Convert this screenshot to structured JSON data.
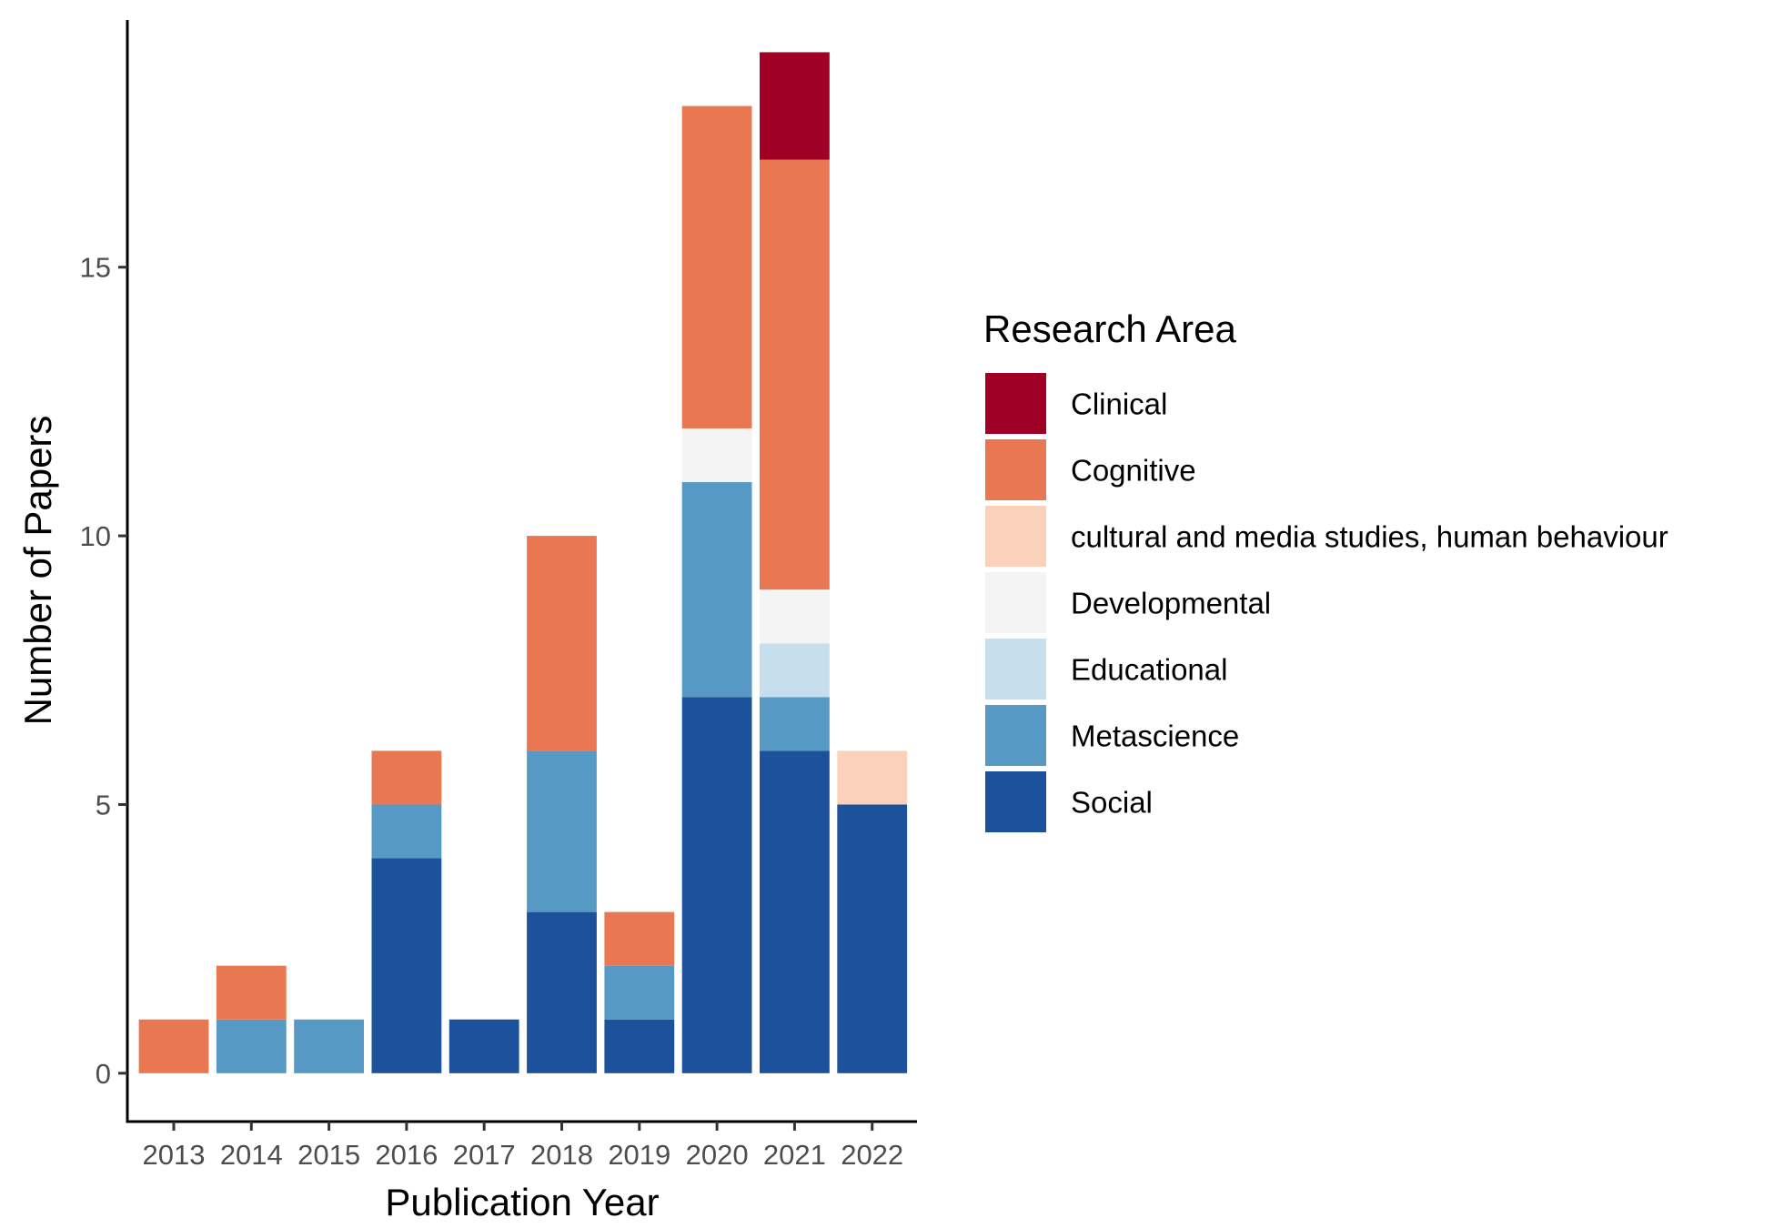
{
  "chart_data": {
    "type": "bar",
    "stacked": true,
    "xlabel": "Publication Year",
    "ylabel": "Number of Papers",
    "categories": [
      "2013",
      "2014",
      "2015",
      "2016",
      "2017",
      "2018",
      "2019",
      "2020",
      "2021",
      "2022"
    ],
    "ylim": [
      -0.9,
      19.6
    ],
    "yticks": [
      0,
      5,
      10,
      15
    ],
    "grid": false,
    "legend": {
      "title": "Research Area",
      "position": "right"
    },
    "series": [
      {
        "name": "Social",
        "color": "#1c519b",
        "values": [
          0,
          0,
          0,
          4,
          1,
          3,
          1,
          7,
          6,
          5
        ]
      },
      {
        "name": "Metascience",
        "color": "#5799c5",
        "values": [
          0,
          1,
          1,
          1,
          0,
          3,
          1,
          4,
          1,
          0
        ]
      },
      {
        "name": "Educational",
        "color": "#c7dfec",
        "values": [
          0,
          0,
          0,
          0,
          0,
          0,
          0,
          0,
          1,
          0
        ]
      },
      {
        "name": "Developmental",
        "color": "#f4f4f4",
        "values": [
          0,
          0,
          0,
          0,
          0,
          0,
          0,
          1,
          1,
          0
        ]
      },
      {
        "name": "cultural and media studies, human behaviour",
        "color": "#fcd1bb",
        "values": [
          0,
          0,
          0,
          0,
          0,
          0,
          0,
          0,
          0,
          1
        ]
      },
      {
        "name": "Cognitive",
        "color": "#e97752",
        "values": [
          1,
          1,
          0,
          1,
          0,
          4,
          1,
          6,
          8,
          0
        ]
      },
      {
        "name": "Clinical",
        "color": "#a10026",
        "values": [
          0,
          0,
          0,
          0,
          0,
          0,
          0,
          0,
          2,
          0
        ]
      }
    ],
    "legend_order": [
      "Clinical",
      "Cognitive",
      "cultural and media studies, human behaviour",
      "Developmental",
      "Educational",
      "Metascience",
      "Social"
    ]
  }
}
